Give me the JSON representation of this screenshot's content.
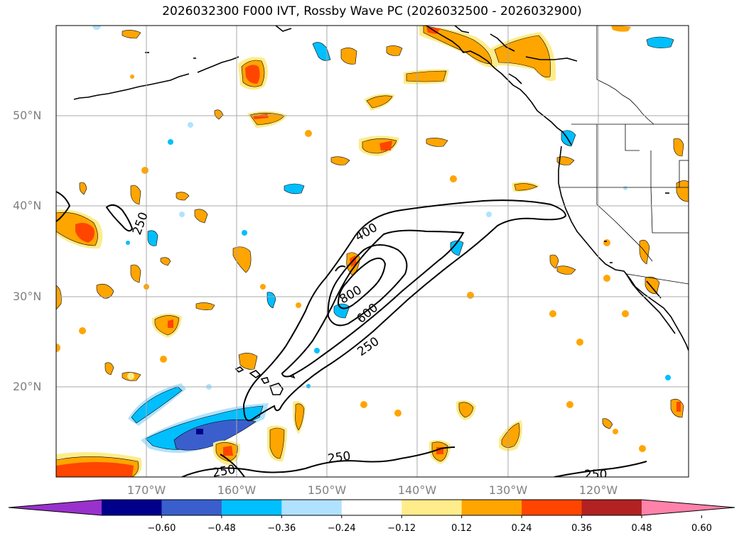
{
  "title": "2026032300 F000 IVT, Rossby Wave PC (2026032500 - 2026032900)",
  "map": {
    "lon_range": [
      -180,
      -110
    ],
    "lat_range": [
      10,
      60
    ],
    "lat_ticks": [
      {
        "value": 20,
        "label": "20°N"
      },
      {
        "value": 30,
        "label": "30°N"
      },
      {
        "value": 40,
        "label": "40°N"
      },
      {
        "value": 50,
        "label": "50°N"
      }
    ],
    "lon_ticks": [
      {
        "value": -170,
        "label": "170°W"
      },
      {
        "value": -160,
        "label": "160°W"
      },
      {
        "value": -150,
        "label": "150°W"
      },
      {
        "value": -140,
        "label": "140°W"
      },
      {
        "value": -130,
        "label": "130°W"
      },
      {
        "value": -120,
        "label": "120°W"
      }
    ],
    "gridlines": true,
    "ivt_contour_levels": [
      {
        "value": 250,
        "label": "250"
      },
      {
        "value": 400,
        "label": "400"
      },
      {
        "value": 600,
        "label": "600"
      },
      {
        "value": 800,
        "label": "800"
      }
    ]
  },
  "colorbar": {
    "extend": "both",
    "colors": [
      "#9932cc",
      "#00008b",
      "#3a5fcd",
      "#00bfff",
      "#b0e2ff",
      "#ffffff",
      "#ffec8b",
      "#ffa500",
      "#ff4500",
      "#b22222",
      "#ff82ab"
    ],
    "tick_labels": [
      "−0.60",
      "−0.48",
      "−0.36",
      "−0.24",
      "−0.12",
      "0.12",
      "0.24",
      "0.36",
      "0.48",
      "0.60"
    ]
  }
}
